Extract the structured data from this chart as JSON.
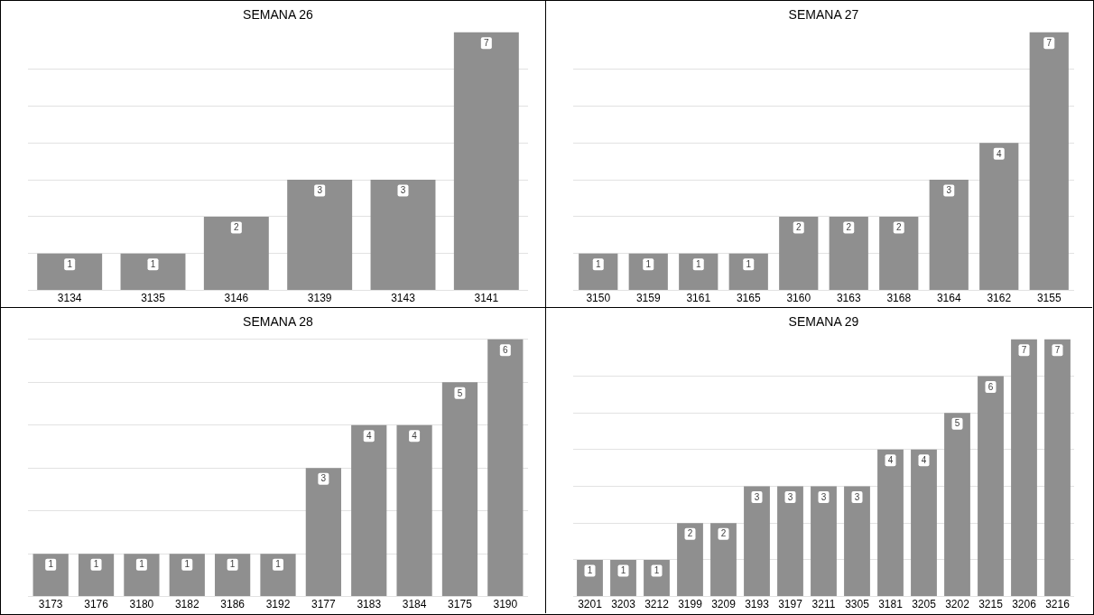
{
  "chart_data": [
    {
      "type": "bar",
      "title": "SEMANA 26",
      "categories": [
        "3134",
        "3135",
        "3146",
        "3139",
        "3143",
        "3141"
      ],
      "values": [
        1,
        1,
        2,
        3,
        3,
        7
      ],
      "color": "#8f8f8f",
      "ylim": [
        0,
        7
      ],
      "yticks": [
        0,
        1,
        2,
        3,
        4,
        5,
        6
      ],
      "grid": "y",
      "tick_labels": "x",
      "data_labels": true
    },
    {
      "type": "bar",
      "title": "SEMANA 27",
      "categories": [
        "3150",
        "3159",
        "3161",
        "3165",
        "3160",
        "3163",
        "3168",
        "3164",
        "3162",
        "3155"
      ],
      "values": [
        1,
        1,
        1,
        1,
        2,
        2,
        2,
        3,
        4,
        7
      ],
      "color": "#8f8f8f",
      "ylim": [
        0,
        7
      ],
      "yticks": [
        0,
        1,
        2,
        3,
        4,
        5,
        6
      ],
      "grid": "y",
      "tick_labels": "x",
      "data_labels": true
    },
    {
      "type": "bar",
      "title": "SEMANA 28",
      "categories": [
        "3173",
        "3176",
        "3180",
        "3182",
        "3186",
        "3192",
        "3177",
        "3183",
        "3184",
        "3175",
        "3190"
      ],
      "values": [
        1,
        1,
        1,
        1,
        1,
        1,
        3,
        4,
        4,
        5,
        6
      ],
      "color": "#8f8f8f",
      "ylim": [
        0,
        6
      ],
      "yticks": [
        0,
        1,
        2,
        3,
        4,
        5,
        6
      ],
      "grid": "y",
      "tick_labels": "x",
      "data_labels": true
    },
    {
      "type": "bar",
      "title": "SEMANA 29",
      "categories": [
        "3201",
        "3203",
        "3212",
        "3199",
        "3209",
        "3193",
        "3197",
        "3211",
        "3305",
        "3181",
        "3205",
        "3202",
        "3215",
        "3206",
        "3216"
      ],
      "values": [
        1,
        1,
        1,
        2,
        2,
        3,
        3,
        3,
        3,
        4,
        4,
        5,
        6,
        7,
        7
      ],
      "color": "#8f8f8f",
      "ylim": [
        0,
        7
      ],
      "yticks": [
        0,
        1,
        2,
        3,
        4,
        5,
        6
      ],
      "grid": "y",
      "tick_labels": "x",
      "data_labels": true
    }
  ]
}
